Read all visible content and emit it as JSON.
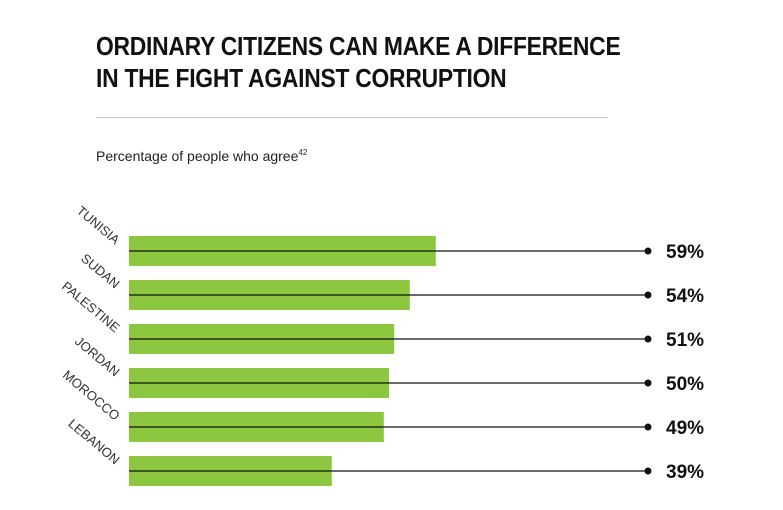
{
  "title_line1": "ORDINARY CITIZENS CAN MAKE A DIFFERENCE",
  "title_line2": "IN THE FIGHT AGAINST CORRUPTION",
  "subtitle": "Percentage of people who agree",
  "subtitle_note": "42",
  "chart_data": {
    "type": "bar",
    "orientation": "horizontal",
    "title": "ORDINARY CITIZENS CAN MAKE A DIFFERENCE IN THE FIGHT AGAINST CORRUPTION",
    "subtitle": "Percentage of people who agree",
    "categories": [
      "TUNISIA",
      "SUDAN",
      "PALESTINE",
      "JORDAN",
      "MOROCCO",
      "LEBANON"
    ],
    "values": [
      59,
      54,
      51,
      50,
      49,
      39
    ],
    "value_labels": [
      "59%",
      "54%",
      "51%",
      "50%",
      "49%",
      "39%"
    ],
    "unit": "%",
    "xlim": [
      0,
      100
    ],
    "grid": false,
    "legend": "none",
    "bar_color": "#8dc63f",
    "line_color": "#111111"
  }
}
